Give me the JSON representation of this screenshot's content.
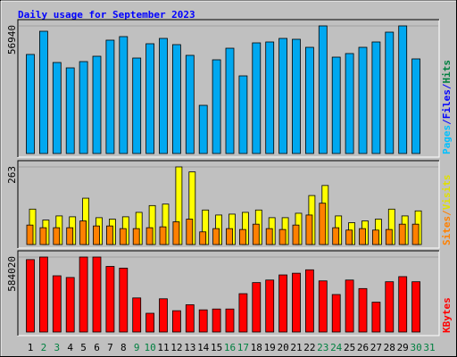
{
  "title": "Daily usage for September 2023",
  "title_color": "#0000ff",
  "background": "#c0c0c0",
  "chart_data": [
    {
      "type": "bar",
      "legend": [
        {
          "label": "Pages",
          "color": "#00c0ff"
        },
        {
          "label": "/",
          "color": "#0000ff"
        },
        {
          "label": "Files",
          "color": "#0000ff"
        },
        {
          "label": "/",
          "color": "#0000ff"
        },
        {
          "label": "Hits",
          "color": "#008040"
        }
      ],
      "series": [
        {
          "color": "#00a8f0",
          "values": [
            44200,
            54550,
            40610,
            38220,
            41010,
            43400,
            50570,
            52160,
            42600,
            48980,
            51360,
            48580,
            43800,
            21500,
            41810,
            46980,
            34640,
            49370,
            49770,
            51360,
            50970,
            47380,
            56940,
            43000,
            44600,
            47380,
            49770,
            54150,
            56940,
            42210,
            null
          ]
        }
      ],
      "ylim": [
        0,
        56940
      ],
      "yticks": [
        56940
      ],
      "grid": true
    },
    {
      "type": "bar",
      "legend": [
        {
          "label": "Sites",
          "color": "#ff8000"
        },
        {
          "label": "/",
          "color": "#ff8000"
        },
        {
          "label": "Visits",
          "color": "#e0e000"
        }
      ],
      "series": [
        {
          "color": "#ffff00",
          "values": [
            120,
            83,
            97,
            94,
            157,
            91,
            86,
            94,
            109,
            132,
            137,
            263,
            246,
            117,
            100,
            103,
            109,
            117,
            91,
            91,
            106,
            166,
            200,
            97,
            74,
            80,
            86,
            120,
            97,
            114,
            null
          ]
        },
        {
          "color": "#ff8000",
          "values": [
            66,
            57,
            57,
            57,
            80,
            63,
            63,
            54,
            54,
            57,
            60,
            77,
            86,
            43,
            54,
            54,
            51,
            69,
            54,
            51,
            66,
            100,
            140,
            57,
            49,
            54,
            49,
            51,
            69,
            69,
            null
          ]
        }
      ],
      "ylim": [
        0,
        263
      ],
      "yticks": [
        263
      ],
      "grid": true
    },
    {
      "type": "bar",
      "legend": [
        {
          "label": "KBytes",
          "color": "#ff0000"
        }
      ],
      "series": [
        {
          "color": "#ff0000",
          "values": [
            564100,
            584020,
            438000,
            424700,
            584020,
            584020,
            511000,
            497700,
            265500,
            146000,
            258800,
            165900,
            212400,
            172600,
            179200,
            179200,
            298600,
            384900,
            404800,
            444700,
            457900,
            484500,
            398200,
            292000,
            404800,
            338500,
            232300,
            391600,
            431400,
            391600,
            null
          ]
        }
      ],
      "ylim": [
        0,
        584020
      ],
      "yticks": [
        584020
      ],
      "grid": true,
      "categories": [
        "1",
        "2",
        "3",
        "4",
        "5",
        "6",
        "7",
        "8",
        "9",
        "10",
        "11",
        "12",
        "13",
        "14",
        "15",
        "16",
        "17",
        "18",
        "19",
        "20",
        "21",
        "22",
        "23",
        "24",
        "25",
        "26",
        "27",
        "28",
        "29",
        "30",
        "31"
      ],
      "category_colors": [
        "#000000",
        "#008040",
        "#008040",
        "#000000",
        "#000000",
        "#000000",
        "#000000",
        "#000000",
        "#008040",
        "#008040",
        "#000000",
        "#000000",
        "#000000",
        "#000000",
        "#000000",
        "#008040",
        "#008040",
        "#000000",
        "#000000",
        "#000000",
        "#000000",
        "#000000",
        "#008040",
        "#008040",
        "#000000",
        "#000000",
        "#000000",
        "#000000",
        "#000000",
        "#008040",
        "#008040"
      ]
    }
  ]
}
